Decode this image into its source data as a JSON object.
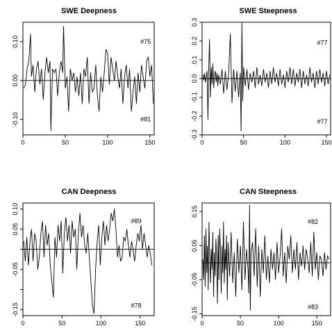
{
  "chart_data": [
    {
      "type": "line",
      "title": "SWE Deepness",
      "xlim": [
        0,
        155
      ],
      "ylim": [
        -0.14,
        0.15
      ],
      "xticks": [
        0,
        50,
        100,
        150
      ],
      "yticks": [
        -0.1,
        0.0,
        0.1
      ],
      "ytick_labels": [
        "-0.10",
        "0.00",
        "0.10"
      ],
      "annotations": [
        {
          "text": "#75",
          "x": 145,
          "y": 0.1
        },
        {
          "text": "#81",
          "x": 145,
          "y": -0.1
        }
      ],
      "x": [
        1,
        3,
        5,
        7,
        9,
        10,
        12,
        14,
        16,
        18,
        20,
        22,
        24,
        26,
        28,
        30,
        32,
        33,
        35,
        37,
        39,
        41,
        43,
        45,
        47,
        48,
        50,
        52,
        54,
        56,
        58,
        60,
        62,
        64,
        66,
        68,
        70,
        72,
        74,
        76,
        78,
        80,
        82,
        84,
        86,
        88,
        90,
        92,
        94,
        96,
        98,
        100,
        102,
        104,
        106,
        108,
        110,
        112,
        114,
        116,
        118,
        120,
        122,
        124,
        126,
        128,
        130,
        132,
        134,
        136,
        138,
        140,
        142,
        144,
        146,
        148,
        150,
        152,
        154
      ],
      "y": [
        -0.02,
        -0.01,
        0.03,
        0.05,
        0.12,
        0.01,
        0.04,
        -0.03,
        0.03,
        0.05,
        -0.01,
        0.03,
        -0.05,
        0.02,
        0.06,
        0.02,
        0.05,
        -0.13,
        0.03,
        0.02,
        0.03,
        -0.04,
        0.02,
        0.05,
        0.02,
        0.14,
        -0.02,
        0.01,
        -0.08,
        0.03,
        0.0,
        0.02,
        -0.03,
        0.01,
        -0.04,
        0.02,
        -0.06,
        0.03,
        0.01,
        0.06,
        -0.06,
        0.02,
        -0.03,
        -0.02,
        0.04,
        -0.04,
        -0.08,
        0.01,
        -0.03,
        0.02,
        0.08,
        0.07,
        -0.01,
        0.06,
        0.03,
        0.0,
        0.05,
        0.01,
        -0.02,
        0.03,
        -0.06,
        0.01,
        0.04,
        -0.02,
        0.03,
        -0.08,
        -0.03,
        0.01,
        -0.06,
        0.02,
        -0.03,
        0.04,
        0.01,
        -0.02,
        0.05,
        0.06,
        0.01,
        0.04,
        -0.06
      ]
    },
    {
      "type": "line",
      "title": "SWE Steepness",
      "xlim": [
        0,
        155
      ],
      "ylim": [
        -0.3,
        0.3
      ],
      "xticks": [
        0,
        50,
        100,
        150
      ],
      "yticks": [
        -0.3,
        -0.2,
        -0.1,
        0.0,
        0.1,
        0.2,
        0.3
      ],
      "ytick_labels": [
        "-0.3",
        "-0.2",
        "-0.1",
        "0.0",
        "0.1",
        "0.2",
        "0.3"
      ],
      "annotations": [
        {
          "text": "#77",
          "x": 145,
          "y": 0.19
        },
        {
          "text": "#77",
          "x": 145,
          "y": -0.23
        }
      ],
      "x": [
        1,
        2,
        3,
        4,
        5,
        6,
        7,
        8,
        9,
        10,
        11,
        12,
        13,
        14,
        15,
        16,
        17,
        18,
        19,
        20,
        22,
        24,
        26,
        28,
        30,
        32,
        34,
        36,
        38,
        40,
        42,
        44,
        46,
        47,
        48,
        49,
        50,
        52,
        54,
        56,
        58,
        60,
        62,
        64,
        66,
        68,
        70,
        72,
        74,
        76,
        78,
        80,
        82,
        84,
        86,
        88,
        90,
        92,
        94,
        96,
        98,
        100,
        102,
        104,
        106,
        108,
        110,
        112,
        114,
        116,
        118,
        120,
        122,
        124,
        126,
        128,
        130,
        132,
        134,
        136,
        138,
        140,
        142,
        144,
        146,
        148,
        150,
        152,
        154
      ],
      "y": [
        0.02,
        -0.01,
        0.03,
        -0.02,
        0.01,
        0.04,
        -0.22,
        0.05,
        0.21,
        -0.1,
        0.06,
        -0.03,
        0.08,
        -0.05,
        0.02,
        0.04,
        -0.02,
        0.03,
        -0.04,
        0.02,
        -0.03,
        0.05,
        -0.08,
        0.04,
        -0.06,
        0.03,
        0.24,
        -0.13,
        0.05,
        -0.07,
        0.04,
        -0.1,
        0.03,
        -0.28,
        0.3,
        -0.12,
        0.06,
        -0.04,
        0.05,
        -0.06,
        0.03,
        -0.02,
        0.04,
        -0.05,
        0.06,
        -0.03,
        0.02,
        -0.04,
        0.05,
        -0.02,
        0.03,
        -0.05,
        0.04,
        -0.03,
        0.06,
        -0.02,
        0.03,
        -0.04,
        0.05,
        -0.03,
        0.02,
        -0.05,
        0.04,
        -0.02,
        0.06,
        -0.03,
        0.05,
        -0.04,
        0.03,
        -0.02,
        0.05,
        -0.05,
        0.04,
        -0.03,
        0.02,
        -0.04,
        0.06,
        -0.02,
        0.03,
        -0.05,
        0.04,
        -0.03,
        0.05,
        -0.02,
        0.03,
        -0.04,
        0.04,
        -0.03,
        0.02
      ]
    },
    {
      "type": "line",
      "title": "CAN Deepness",
      "xlim": [
        0,
        168
      ],
      "ylim": [
        -0.165,
        0.115
      ],
      "xticks": [
        0,
        50,
        100,
        150
      ],
      "yticks": [
        -0.15,
        -0.1,
        -0.05,
        0.0,
        0.05,
        0.1
      ],
      "ytick_labels": [
        "-0.15",
        "-0.05",
        "0.05",
        "0.10"
      ],
      "ytick_label_values": [
        -0.15,
        -0.05,
        0.05,
        0.1
      ],
      "annotations": [
        {
          "text": "#89",
          "x": 145,
          "y": 0.07
        },
        {
          "text": "#78",
          "x": 145,
          "y": -0.14
        }
      ],
      "x": [
        1,
        3,
        5,
        7,
        9,
        11,
        13,
        15,
        17,
        19,
        21,
        23,
        25,
        27,
        29,
        31,
        33,
        35,
        37,
        39,
        41,
        43,
        45,
        47,
        49,
        51,
        53,
        55,
        57,
        59,
        61,
        63,
        65,
        67,
        69,
        71,
        73,
        75,
        77,
        79,
        81,
        83,
        85,
        87,
        89,
        91,
        93,
        95,
        97,
        99,
        101,
        103,
        105,
        107,
        109,
        111,
        113,
        115,
        117,
        119,
        121,
        123,
        125,
        127,
        129,
        131,
        133,
        135,
        137,
        139,
        141,
        143,
        145,
        147,
        149,
        151,
        153,
        155,
        157,
        159,
        161,
        163,
        165
      ],
      "y": [
        0.02,
        -0.03,
        0.03,
        -0.04,
        0.02,
        0.05,
        -0.03,
        0.04,
        0.02,
        -0.05,
        -0.02,
        0.04,
        0.07,
        -0.02,
        0.06,
        0.01,
        0.04,
        -0.04,
        -0.08,
        -0.12,
        0.03,
        -0.02,
        0.06,
        0.02,
        0.07,
        -0.06,
        0.04,
        0.08,
        0.02,
        0.06,
        -0.01,
        0.07,
        0.03,
        0.05,
        -0.05,
        0.04,
        0.09,
        0.03,
        0.06,
        0.01,
        -0.01,
        0.04,
        -0.02,
        -0.08,
        -0.14,
        -0.16,
        -0.05,
        0.02,
        0.06,
        -0.04,
        0.03,
        0.07,
        0.01,
        0.06,
        0.02,
        0.05,
        0.09,
        0.07,
        0.1,
        0.05,
        -0.02,
        0.01,
        -0.03,
        -0.02,
        0.03,
        0.02,
        0.05,
        0.01,
        -0.02,
        0.02,
        0.0,
        -0.03,
        0.01,
        0.04,
        0.02,
        0.06,
        0.0,
        0.04,
        0.01,
        -0.02,
        0.01,
        -0.01,
        -0.04
      ]
    },
    {
      "type": "line",
      "title": "CAN Steepness",
      "xlim": [
        0,
        168
      ],
      "ylim": [
        -0.155,
        0.175
      ],
      "xticks": [
        0,
        50,
        100,
        150
      ],
      "yticks": [
        -0.15,
        -0.05,
        0.05,
        0.15
      ],
      "ytick_labels": [
        "-0.15",
        "-0.05",
        "0.05",
        "0.15"
      ],
      "annotations": [
        {
          "text": "#82",
          "x": 145,
          "y": 0.12
        },
        {
          "text": "#83",
          "x": 145,
          "y": -0.13
        }
      ],
      "x": [
        1,
        2,
        3,
        4,
        5,
        6,
        7,
        8,
        9,
        10,
        11,
        12,
        13,
        14,
        15,
        16,
        17,
        18,
        19,
        20,
        21,
        22,
        23,
        24,
        25,
        26,
        27,
        28,
        29,
        30,
        31,
        32,
        33,
        34,
        35,
        36,
        38,
        40,
        42,
        44,
        46,
        48,
        50,
        52,
        54,
        56,
        58,
        60,
        61,
        62,
        63,
        64,
        66,
        68,
        70,
        72,
        74,
        76,
        78,
        80,
        82,
        84,
        86,
        88,
        90,
        92,
        94,
        96,
        98,
        100,
        102,
        104,
        106,
        108,
        110,
        112,
        114,
        116,
        118,
        120,
        122,
        124,
        126,
        128,
        130,
        132,
        134,
        136,
        138,
        140,
        142,
        144,
        146,
        148,
        150,
        152,
        154,
        156,
        158,
        160,
        162,
        164,
        166
      ],
      "y": [
        0.01,
        -0.05,
        0.08,
        -0.07,
        0.1,
        -0.03,
        0.05,
        -0.08,
        0.12,
        0.02,
        -0.06,
        0.04,
        -0.02,
        0.09,
        -0.1,
        0.03,
        -0.04,
        0.07,
        0.02,
        -0.12,
        0.08,
        -0.05,
        0.1,
        0.03,
        -0.09,
        0.05,
        -0.03,
        0.12,
        -0.06,
        0.04,
        -0.02,
        0.08,
        -0.11,
        0.06,
        0.01,
        -0.04,
        0.09,
        -0.06,
        0.03,
        -0.1,
        0.07,
        -0.03,
        0.05,
        -0.08,
        0.12,
        -0.05,
        0.04,
        -0.02,
        -0.09,
        0.17,
        -0.14,
        0.03,
        0.06,
        -0.04,
        0.1,
        -0.07,
        0.05,
        -0.1,
        0.04,
        -0.03,
        0.08,
        -0.05,
        0.02,
        -0.06,
        0.04,
        -0.02,
        0.03,
        -0.05,
        0.06,
        -0.03,
        0.02,
        0.1,
        -0.04,
        0.03,
        -0.06,
        0.05,
        0.01,
        0.08,
        -0.03,
        0.04,
        -0.02,
        0.06,
        -0.05,
        0.03,
        -0.01,
        0.05,
        -0.02,
        0.04,
        0.01,
        -0.03,
        0.06,
        -0.04,
        0.09,
        -0.02,
        0.03,
        -0.05,
        0.02,
        0.01,
        -0.04,
        0.03,
        -0.02,
        0.02,
        0.01
      ]
    }
  ]
}
